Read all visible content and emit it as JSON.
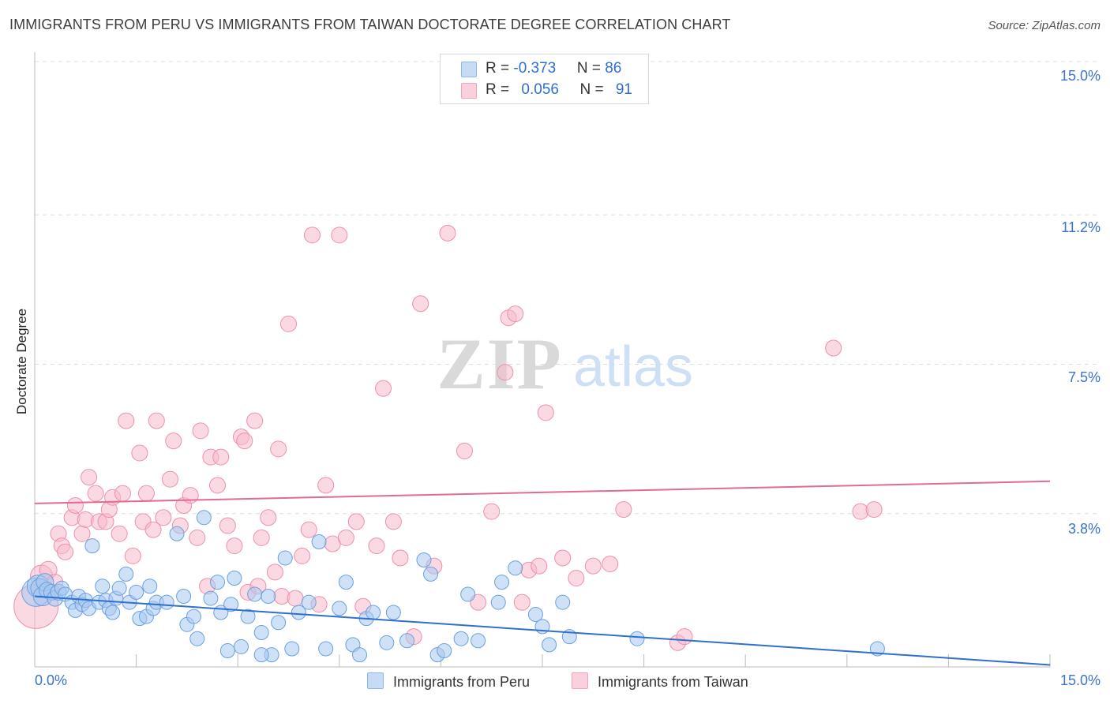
{
  "header": {
    "title": "IMMIGRANTS FROM PERU VS IMMIGRANTS FROM TAIWAN DOCTORATE DEGREE CORRELATION CHART",
    "source": "Source: ZipAtlas.com"
  },
  "watermark": {
    "zip": "ZIP",
    "atlas": "atlas"
  },
  "legend": {
    "peru": {
      "r_label": "R = ",
      "r_value": "-0.373",
      "n_label": "N = ",
      "n_value": "86"
    },
    "taiwan": {
      "r_label": "R = ",
      "r_value": "0.056",
      "n_label": "N = ",
      "n_value": "91"
    }
  },
  "colors": {
    "peru_fill": "#a8c8f0",
    "peru_stroke": "#6b9fe0",
    "peru_line": "#2f6fd0",
    "taiwan_fill": "#f7b9cc",
    "taiwan_stroke": "#ee8fab",
    "taiwan_line": "#e36a94",
    "tick_text": "#3b73cf",
    "grid": "#dddddd"
  },
  "chart_data": {
    "type": "scatter",
    "title": "IMMIGRANTS FROM PERU VS IMMIGRANTS FROM TAIWAN DOCTORATE DEGREE CORRELATION CHART",
    "xlabel": "",
    "ylabel": "Doctorate Degree",
    "xlim": [
      0,
      15
    ],
    "ylim": [
      0,
      15
    ],
    "x_tick_labels": [
      "0.0%",
      "15.0%"
    ],
    "y_ticks": [
      3.8,
      7.5,
      11.2,
      15.0
    ],
    "y_tick_labels": [
      "3.8%",
      "7.5%",
      "11.2%",
      "15.0%"
    ],
    "grid": true,
    "legend_position": "top-center",
    "series": [
      {
        "name": "Immigrants from Peru",
        "r": -0.373,
        "n": 86,
        "trend": [
          [
            0,
            1.75
          ],
          [
            15,
            0.05
          ]
        ],
        "points": [
          [
            0.02,
            1.85,
            18
          ],
          [
            0.05,
            2.0,
            14
          ],
          [
            0.08,
            1.95,
            12
          ],
          [
            0.12,
            1.75,
            12
          ],
          [
            0.15,
            2.1,
            11
          ],
          [
            0.18,
            1.9,
            10
          ],
          [
            0.25,
            1.85,
            10
          ],
          [
            0.3,
            1.7,
            10
          ],
          [
            0.35,
            1.85,
            10
          ],
          [
            0.4,
            1.95,
            9
          ],
          [
            0.45,
            1.8,
            9
          ],
          [
            0.55,
            1.6,
            9
          ],
          [
            0.6,
            1.4,
            9
          ],
          [
            0.65,
            1.75,
            9
          ],
          [
            0.7,
            1.55,
            9
          ],
          [
            0.75,
            1.65,
            9
          ],
          [
            0.8,
            1.45,
            9
          ],
          [
            0.85,
            3.0,
            9
          ],
          [
            0.95,
            1.6,
            9
          ],
          [
            1.0,
            2.0,
            9
          ],
          [
            1.05,
            1.65,
            9
          ],
          [
            1.1,
            1.45,
            9
          ],
          [
            1.15,
            1.35,
            9
          ],
          [
            1.2,
            1.7,
            9
          ],
          [
            1.25,
            1.95,
            9
          ],
          [
            1.35,
            2.3,
            9
          ],
          [
            1.4,
            1.6,
            9
          ],
          [
            1.5,
            1.85,
            9
          ],
          [
            1.55,
            1.2,
            9
          ],
          [
            1.65,
            1.25,
            9
          ],
          [
            1.7,
            2.0,
            9
          ],
          [
            1.75,
            1.45,
            9
          ],
          [
            1.8,
            1.6,
            9
          ],
          [
            1.95,
            1.6,
            9
          ],
          [
            2.1,
            3.3,
            9
          ],
          [
            2.2,
            1.75,
            9
          ],
          [
            2.25,
            1.05,
            9
          ],
          [
            2.35,
            1.25,
            9
          ],
          [
            2.4,
            0.7,
            9
          ],
          [
            2.5,
            3.7,
            9
          ],
          [
            2.6,
            1.7,
            9
          ],
          [
            2.7,
            2.1,
            9
          ],
          [
            2.75,
            1.35,
            9
          ],
          [
            2.85,
            0.4,
            9
          ],
          [
            2.9,
            1.55,
            9
          ],
          [
            2.95,
            2.2,
            9
          ],
          [
            3.05,
            0.5,
            9
          ],
          [
            3.15,
            1.25,
            9
          ],
          [
            3.25,
            1.8,
            9
          ],
          [
            3.35,
            0.85,
            9
          ],
          [
            3.45,
            1.75,
            9
          ],
          [
            3.5,
            0.3,
            9
          ],
          [
            3.6,
            1.1,
            9
          ],
          [
            3.7,
            2.7,
            9
          ],
          [
            3.8,
            0.45,
            9
          ],
          [
            3.9,
            1.35,
            9
          ],
          [
            4.05,
            1.6,
            9
          ],
          [
            4.2,
            3.1,
            9
          ],
          [
            4.3,
            0.45,
            9
          ],
          [
            4.5,
            1.45,
            9
          ],
          [
            4.6,
            2.1,
            9
          ],
          [
            4.7,
            0.55,
            9
          ],
          [
            4.8,
            0.3,
            9
          ],
          [
            4.9,
            1.2,
            9
          ],
          [
            5.0,
            1.35,
            9
          ],
          [
            5.2,
            0.6,
            9
          ],
          [
            5.3,
            1.35,
            9
          ],
          [
            5.5,
            0.65,
            9
          ],
          [
            5.75,
            2.65,
            9
          ],
          [
            5.85,
            2.3,
            9
          ],
          [
            5.95,
            0.3,
            9
          ],
          [
            6.05,
            0.4,
            9
          ],
          [
            6.3,
            0.7,
            9
          ],
          [
            6.4,
            1.8,
            9
          ],
          [
            6.55,
            0.65,
            9
          ],
          [
            6.85,
            1.6,
            9
          ],
          [
            6.9,
            2.1,
            9
          ],
          [
            7.1,
            2.45,
            9
          ],
          [
            7.4,
            1.3,
            9
          ],
          [
            7.5,
            1.0,
            9
          ],
          [
            7.6,
            0.55,
            9
          ],
          [
            7.8,
            1.6,
            9
          ],
          [
            7.9,
            0.75,
            9
          ],
          [
            8.9,
            0.7,
            9
          ],
          [
            12.45,
            0.45,
            9
          ],
          [
            3.35,
            0.3,
            9
          ]
        ]
      },
      {
        "name": "Immigrants from Taiwan",
        "r": 0.056,
        "n": 91,
        "trend": [
          [
            0,
            4.05
          ],
          [
            15,
            4.6
          ]
        ],
        "points": [
          [
            0.02,
            1.5,
            28
          ],
          [
            0.1,
            2.25,
            14
          ],
          [
            0.2,
            2.4,
            11
          ],
          [
            0.3,
            2.1,
            10
          ],
          [
            0.35,
            3.3,
            10
          ],
          [
            0.4,
            3.0,
            10
          ],
          [
            0.45,
            2.85,
            10
          ],
          [
            0.55,
            3.7,
            10
          ],
          [
            0.6,
            4.0,
            10
          ],
          [
            0.7,
            3.3,
            10
          ],
          [
            0.75,
            3.65,
            10
          ],
          [
            0.8,
            4.7,
            10
          ],
          [
            0.9,
            4.3,
            10
          ],
          [
            0.95,
            3.6,
            10
          ],
          [
            1.05,
            3.6,
            10
          ],
          [
            1.1,
            3.9,
            10
          ],
          [
            1.15,
            4.2,
            10
          ],
          [
            1.25,
            3.3,
            10
          ],
          [
            1.3,
            4.3,
            10
          ],
          [
            1.35,
            6.1,
            10
          ],
          [
            1.45,
            2.75,
            10
          ],
          [
            1.55,
            5.3,
            10
          ],
          [
            1.6,
            3.6,
            10
          ],
          [
            1.65,
            4.3,
            10
          ],
          [
            1.75,
            3.4,
            10
          ],
          [
            1.8,
            6.1,
            10
          ],
          [
            1.9,
            3.7,
            10
          ],
          [
            2.0,
            4.65,
            10
          ],
          [
            2.05,
            5.6,
            10
          ],
          [
            2.15,
            3.5,
            10
          ],
          [
            2.2,
            4.0,
            10
          ],
          [
            2.3,
            4.25,
            10
          ],
          [
            2.4,
            3.2,
            10
          ],
          [
            2.45,
            5.85,
            10
          ],
          [
            2.55,
            2.0,
            10
          ],
          [
            2.6,
            5.2,
            10
          ],
          [
            2.7,
            4.5,
            10
          ],
          [
            2.75,
            5.2,
            10
          ],
          [
            2.85,
            3.5,
            10
          ],
          [
            2.95,
            3.0,
            10
          ],
          [
            3.05,
            5.7,
            10
          ],
          [
            3.1,
            5.6,
            10
          ],
          [
            3.15,
            1.85,
            10
          ],
          [
            3.25,
            6.1,
            10
          ],
          [
            3.3,
            2.0,
            10
          ],
          [
            3.35,
            3.2,
            10
          ],
          [
            3.45,
            3.7,
            10
          ],
          [
            3.55,
            2.35,
            10
          ],
          [
            3.6,
            5.4,
            10
          ],
          [
            3.65,
            1.75,
            10
          ],
          [
            3.75,
            8.5,
            10
          ],
          [
            3.85,
            1.7,
            10
          ],
          [
            3.95,
            2.75,
            10
          ],
          [
            4.05,
            3.4,
            10
          ],
          [
            4.1,
            10.7,
            10
          ],
          [
            4.2,
            1.55,
            10
          ],
          [
            4.3,
            4.5,
            10
          ],
          [
            4.4,
            3.05,
            10
          ],
          [
            4.5,
            10.7,
            10
          ],
          [
            4.6,
            3.2,
            10
          ],
          [
            4.75,
            3.6,
            10
          ],
          [
            4.85,
            1.5,
            10
          ],
          [
            5.05,
            3.0,
            10
          ],
          [
            5.15,
            6.9,
            10
          ],
          [
            5.3,
            3.6,
            10
          ],
          [
            5.4,
            2.7,
            10
          ],
          [
            5.6,
            0.75,
            10
          ],
          [
            5.7,
            9.0,
            10
          ],
          [
            5.9,
            2.5,
            10
          ],
          [
            6.1,
            10.75,
            10
          ],
          [
            6.35,
            5.35,
            10
          ],
          [
            6.55,
            1.6,
            10
          ],
          [
            6.75,
            3.85,
            10
          ],
          [
            6.95,
            7.3,
            10
          ],
          [
            7.0,
            8.65,
            10
          ],
          [
            7.1,
            8.75,
            10
          ],
          [
            7.2,
            1.6,
            10
          ],
          [
            7.3,
            2.4,
            10
          ],
          [
            7.45,
            2.5,
            10
          ],
          [
            7.55,
            6.3,
            10
          ],
          [
            7.8,
            2.7,
            10
          ],
          [
            8.0,
            2.2,
            10
          ],
          [
            8.25,
            2.5,
            10
          ],
          [
            8.5,
            2.55,
            10
          ],
          [
            8.7,
            3.9,
            10
          ],
          [
            9.5,
            0.6,
            10
          ],
          [
            9.6,
            0.75,
            10
          ],
          [
            11.8,
            7.9,
            10
          ],
          [
            12.2,
            3.85,
            10
          ],
          [
            12.4,
            3.9,
            10
          ]
        ]
      }
    ]
  },
  "bottom_legend": {
    "peru": "Immigrants from Peru",
    "taiwan": "Immigrants from Taiwan"
  }
}
